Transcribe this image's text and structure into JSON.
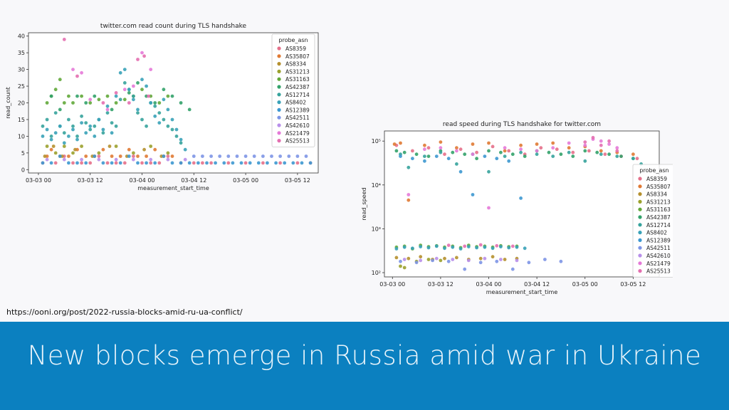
{
  "slide": {
    "source_url": "https://ooni.org/post/2022-russia-blocks-amid-ru-ua-conflict/",
    "title": "New blocks emerge in Russia amid war in Ukraine"
  },
  "legend_title": "probe_asn",
  "series_colors": {
    "AS8359": "#e5708a",
    "AS35807": "#e07a34",
    "AS8334": "#b5902e",
    "AS31213": "#9ba12d",
    "AS31163": "#62a83a",
    "AS42387": "#33a26a",
    "AS12714": "#36a39c",
    "AS8402": "#39a2b8",
    "AS12389": "#3d98d0",
    "AS42511": "#7d95e6",
    "AS42610": "#b88fea",
    "AS21479": "#e57ad8",
    "AS25513": "#e46fb0"
  },
  "chart_data": [
    {
      "type": "scatter",
      "title": "twitter.com read count during TLS handshake",
      "xlabel": "measurement_start_time",
      "ylabel": "read_count",
      "x_ticks": [
        "03-03 00",
        "03-03 12",
        "03-04 00",
        "03-04 12",
        "03-05 00",
        "03-05 12"
      ],
      "x_tick_hours": [
        0,
        12,
        24,
        36,
        48,
        60
      ],
      "xlim_hours": [
        -2.3,
        64.8
      ],
      "y_ticks": [
        0,
        5,
        10,
        15,
        20,
        25,
        30,
        35,
        40
      ],
      "ylim": [
        -1,
        41
      ],
      "yscale": "linear",
      "legend_position": "right",
      "series": [
        {
          "name": "AS8359",
          "x": [
            1,
            4,
            6,
            8,
            10,
            12,
            14,
            16,
            18,
            20,
            22,
            24,
            26,
            28,
            30,
            33,
            36,
            38,
            40,
            44,
            48,
            52,
            56,
            60,
            63
          ],
          "y": [
            2,
            2,
            4,
            2,
            2,
            2,
            4,
            2,
            2,
            2,
            4,
            2,
            2,
            2,
            4,
            2,
            2,
            2,
            2,
            2,
            2,
            2,
            2,
            2,
            2
          ]
        },
        {
          "name": "AS35807",
          "x": [
            2,
            3,
            5,
            7,
            9,
            11,
            13,
            15,
            17,
            19,
            21,
            23,
            25,
            27,
            29,
            31
          ],
          "y": [
            4,
            6,
            4,
            4,
            6,
            4,
            4,
            6,
            4,
            4,
            6,
            4,
            4,
            6,
            4,
            4
          ]
        },
        {
          "name": "AS8334",
          "x": [
            1.5,
            3.5,
            5.5,
            8.5,
            12.5,
            16.5,
            20.5,
            24.5,
            28.5
          ],
          "y": [
            4,
            7,
            4,
            6,
            4,
            7,
            4,
            6,
            4
          ]
        },
        {
          "name": "AS31213",
          "x": [
            2,
            4,
            6,
            8,
            10,
            14,
            18,
            22,
            26,
            30
          ],
          "y": [
            7,
            5,
            7,
            5,
            7,
            5,
            7,
            5,
            7,
            5
          ]
        },
        {
          "name": "AS31163",
          "x": [
            2,
            3,
            4,
            5,
            6,
            7,
            8,
            10,
            12,
            14,
            16,
            18,
            20,
            22,
            24,
            26,
            28,
            30
          ],
          "y": [
            20,
            22,
            24,
            27,
            20,
            22,
            20,
            22,
            20,
            21,
            22,
            20,
            21,
            22,
            24,
            22,
            20,
            22
          ]
        },
        {
          "name": "AS42387",
          "x": [
            3,
            5,
            9,
            11,
            13,
            17,
            21,
            23,
            25,
            27,
            29,
            31,
            33,
            35
          ],
          "y": [
            22,
            18,
            22,
            20,
            22,
            18,
            23,
            26,
            22,
            20,
            24,
            22,
            20,
            18
          ]
        },
        {
          "name": "AS12714",
          "x": [
            1,
            2,
            3,
            4,
            5,
            6,
            7,
            8,
            9,
            10,
            11,
            12,
            13,
            14,
            15,
            16,
            17,
            18,
            19,
            20,
            21,
            22,
            23,
            24,
            25,
            26,
            27,
            28,
            29,
            30,
            31,
            32,
            33
          ],
          "y": [
            13,
            15,
            10,
            17,
            13,
            11,
            15,
            13,
            10,
            16,
            14,
            12,
            13,
            15,
            11,
            17,
            14,
            13,
            21,
            26,
            24,
            22,
            17,
            15,
            13,
            20,
            19,
            17,
            15,
            13,
            12,
            10,
            8
          ]
        },
        {
          "name": "AS8402",
          "x": [
            1,
            2,
            3,
            4,
            5,
            6,
            7,
            8,
            9,
            10,
            11,
            12,
            13,
            14,
            15,
            16,
            17,
            18,
            19,
            20,
            21,
            22,
            23,
            24,
            25,
            26,
            27,
            28,
            29,
            30,
            31,
            32,
            33,
            34
          ],
          "y": [
            10,
            12,
            9,
            11,
            13,
            8,
            10,
            12,
            9,
            14,
            11,
            13,
            10,
            15,
            12,
            19,
            11,
            22,
            29,
            30,
            24,
            21,
            18,
            27,
            25,
            20,
            16,
            14,
            21,
            18,
            15,
            12,
            9,
            6
          ]
        },
        {
          "name": "AS12389",
          "x": [
            1,
            3,
            5,
            7,
            9,
            11,
            13,
            15,
            17,
            19,
            21,
            23,
            25,
            27,
            29,
            31,
            33,
            35,
            37,
            39,
            41,
            43,
            45,
            47,
            49,
            51,
            53,
            55,
            57,
            59,
            61,
            63
          ],
          "y": [
            2,
            2,
            4,
            2,
            2,
            2,
            4,
            2,
            2,
            2,
            4,
            2,
            2,
            2,
            4,
            2,
            2,
            2,
            2,
            2,
            2,
            2,
            2,
            2,
            2,
            2,
            2,
            2,
            2,
            2,
            2,
            2
          ]
        },
        {
          "name": "AS42511",
          "x": [
            36,
            38,
            40,
            42,
            44,
            46,
            48,
            50,
            52,
            54,
            56,
            58,
            60,
            62
          ],
          "y": [
            4,
            4,
            4,
            4,
            4,
            4,
            4,
            4,
            4,
            4,
            4,
            4,
            4,
            4
          ]
        },
        {
          "name": "AS42610",
          "x": [
            2,
            6,
            10,
            14,
            18,
            22,
            26,
            30,
            34
          ],
          "y": [
            3,
            3,
            3,
            3,
            3,
            3,
            3,
            3,
            3
          ]
        },
        {
          "name": "AS21479",
          "x": [
            8,
            10,
            12,
            16,
            20,
            22,
            24,
            26
          ],
          "y": [
            30,
            29,
            21,
            18,
            24,
            25,
            35,
            30
          ]
        },
        {
          "name": "AS25513",
          "x": [
            6,
            9,
            15,
            18,
            21,
            23,
            24.5,
            25.5
          ],
          "y": [
            39,
            28,
            20,
            23,
            20,
            33,
            34,
            22
          ]
        }
      ]
    },
    {
      "type": "scatter",
      "title": "read speed during TLS handshake for twitter.com",
      "xlabel": "measurement_start_time",
      "ylabel": "read_speed",
      "x_ticks": [
        "03-03 00",
        "03-03 12",
        "03-04 00",
        "03-04 12",
        "03-05 00",
        "03-05 12"
      ],
      "x_tick_hours": [
        0,
        12,
        24,
        36,
        48,
        60
      ],
      "xlim_hours": [
        -2.0,
        66.5
      ],
      "y_ticks": [
        "10²",
        "10³",
        "10⁴",
        "10⁵"
      ],
      "y_tick_values": [
        100,
        1000,
        10000,
        100000
      ],
      "ylim": [
        80,
        170000
      ],
      "yscale": "log",
      "legend_position": "lower right",
      "series": [
        {
          "name": "AS8359",
          "x": [
            1,
            5,
            9,
            13,
            17,
            21,
            25,
            29,
            33,
            37,
            41,
            45,
            49,
            53,
            57,
            61
          ],
          "y": [
            80000,
            60000,
            70000,
            50000,
            65000,
            55000,
            75000,
            60000,
            50000,
            70000,
            65000,
            55000,
            60000,
            50000,
            45000,
            40000
          ]
        },
        {
          "name": "AS35807",
          "x": [
            0.5,
            2,
            4,
            8,
            12,
            16,
            20,
            24,
            28,
            32,
            36,
            40,
            44,
            48,
            52,
            56,
            60
          ],
          "y": [
            85000,
            90000,
            4500,
            80000,
            95000,
            70000,
            85000,
            90000,
            60000,
            80000,
            85000,
            90000,
            70000,
            75000,
            60000,
            55000,
            50000
          ]
        },
        {
          "name": "AS8334",
          "x": [
            1,
            4,
            7,
            10,
            13,
            16,
            19,
            22,
            25,
            28,
            31
          ],
          "y": [
            220,
            210,
            230,
            200,
            210,
            220,
            200,
            210,
            230,
            200,
            210
          ]
        },
        {
          "name": "AS31213",
          "x": [
            2,
            3,
            6,
            9,
            12
          ],
          "y": [
            140,
            130,
            180,
            200,
            190
          ]
        },
        {
          "name": "AS31163",
          "x": [
            1,
            3,
            5,
            7,
            9,
            11,
            13,
            15,
            17,
            19,
            21,
            23,
            25,
            27,
            29,
            31
          ],
          "y": [
            380,
            400,
            350,
            420,
            390,
            410,
            380,
            400,
            370,
            420,
            390,
            400,
            380,
            410,
            390,
            400
          ]
        },
        {
          "name": "AS42387",
          "x": [
            1,
            3,
            6,
            9,
            12,
            15,
            18,
            21,
            24,
            27,
            30,
            33,
            36,
            39,
            42,
            45,
            48,
            51,
            54,
            57,
            60
          ],
          "y": [
            60000,
            55000,
            50000,
            45000,
            60000,
            55000,
            50000,
            40000,
            60000,
            55000,
            50000,
            45000,
            60000,
            55000,
            50000,
            45000,
            60000,
            55000,
            50000,
            45000,
            40000
          ]
        },
        {
          "name": "AS12714",
          "x": [
            2,
            4,
            8,
            12,
            16,
            20,
            24,
            28,
            32,
            36,
            40,
            44,
            48,
            52,
            56,
            60,
            62
          ],
          "y": [
            50000,
            25000,
            45000,
            55000,
            30000,
            50000,
            20000,
            45000,
            55000,
            50000,
            45000,
            55000,
            35000,
            50000,
            45000,
            40000,
            30000
          ]
        },
        {
          "name": "AS8402",
          "x": [
            1,
            3,
            5,
            7,
            9,
            11,
            13,
            15,
            17,
            19,
            21,
            23,
            25,
            27,
            29,
            31,
            33
          ],
          "y": [
            350,
            380,
            360,
            390,
            370,
            400,
            360,
            380,
            350,
            390,
            370,
            380,
            360,
            390,
            370,
            380,
            360
          ]
        },
        {
          "name": "AS12389",
          "x": [
            2,
            5,
            8,
            11,
            14,
            17,
            20,
            23,
            26,
            29,
            32
          ],
          "y": [
            45000,
            40000,
            35000,
            45000,
            40000,
            20000,
            6000,
            45000,
            40000,
            35000,
            5000
          ]
        },
        {
          "name": "AS42511",
          "x": [
            2,
            6,
            10,
            14,
            18,
            22,
            26,
            30,
            34,
            38,
            42
          ],
          "y": [
            180,
            170,
            190,
            180,
            120,
            170,
            180,
            120,
            170,
            200,
            180
          ]
        },
        {
          "name": "AS42610",
          "x": [
            3,
            7,
            11,
            15,
            19,
            23,
            27,
            31
          ],
          "y": [
            200,
            190,
            210,
            200,
            190,
            210,
            200,
            190
          ]
        },
        {
          "name": "AS21479",
          "x": [
            4,
            8,
            12,
            16,
            20,
            24,
            28,
            32,
            36,
            40,
            44,
            48,
            50,
            52,
            54,
            56
          ],
          "y": [
            6000,
            65000,
            70000,
            60000,
            50000,
            3000,
            70000,
            65000,
            60000,
            70000,
            90000,
            80000,
            110000,
            100000,
            85000,
            70000
          ]
        },
        {
          "name": "AS25513",
          "x": [
            14,
            18,
            22,
            26,
            30,
            48,
            50,
            52,
            54,
            56
          ],
          "y": [
            420,
            400,
            430,
            410,
            400,
            95000,
            120000,
            80000,
            100000,
            60000
          ]
        }
      ]
    }
  ]
}
